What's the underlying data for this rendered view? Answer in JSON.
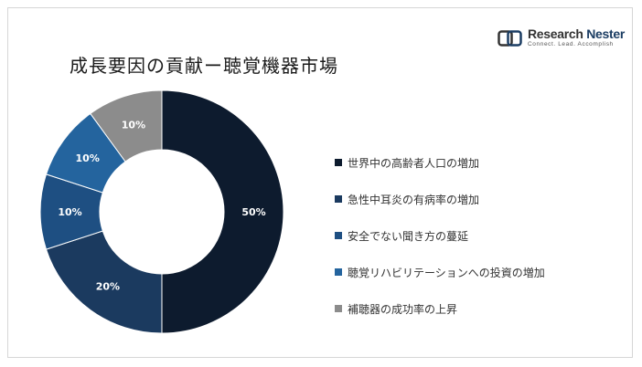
{
  "title": "成長要因の貢献ー聴覚機器市場",
  "logo": {
    "name_part1": "Research",
    "name_part2": "Nester",
    "tagline": "Connect. Lead. Accomplish"
  },
  "chart_data": {
    "type": "pie",
    "donut": true,
    "legend_position": "right",
    "categories": [
      "世界中の高齢者人口の増加",
      "急性中耳炎の有病率の増加",
      "安全でない聞き方の蔓延",
      "聴覚リハビリテーションへの投資の増加",
      "補聴器の成功率の上昇"
    ],
    "values": [
      50,
      20,
      10,
      10,
      10
    ],
    "data_labels": [
      "50%",
      "20%",
      "10%",
      "10%",
      "10%"
    ],
    "colors": [
      "#0d1b2e",
      "#1b3a5f",
      "#1e4f82",
      "#24649e",
      "#8c8c8c"
    ]
  }
}
